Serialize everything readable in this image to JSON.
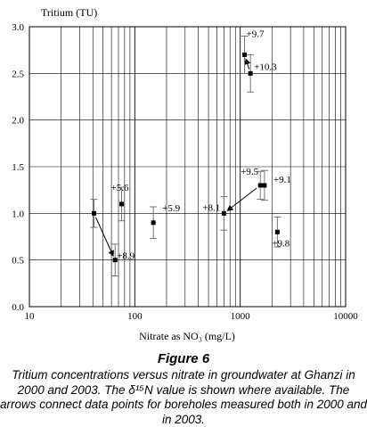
{
  "chart_data": {
    "type": "scatter",
    "xlabel": "Nitrate as NO₃ (mg/L)",
    "ylabel": "Tritium (TU)",
    "xscale": "log",
    "xlim": [
      10,
      10000
    ],
    "ylim": [
      0.0,
      3.0
    ],
    "grid": true,
    "x_ticks": [
      "10",
      "100",
      "1000",
      "10000"
    ],
    "y_ticks": [
      "0.0",
      "0.5",
      "1.0",
      "1.5",
      "2.0",
      "2.5",
      "3.0"
    ],
    "points": [
      {
        "x": 41,
        "y": 1.0,
        "err": 0.15,
        "label": ""
      },
      {
        "x": 65,
        "y": 0.5,
        "err": 0.17,
        "label": "+8.9"
      },
      {
        "x": 75,
        "y": 1.1,
        "err": 0.18,
        "label": "+5.6"
      },
      {
        "x": 150,
        "y": 0.9,
        "err": 0.17,
        "label": "+5.9"
      },
      {
        "x": 700,
        "y": 1.0,
        "err": 0.18,
        "label": "+8.1"
      },
      {
        "x": 1550,
        "y": 1.3,
        "err": 0.15,
        "label": "+9.5"
      },
      {
        "x": 1700,
        "y": 1.3,
        "err": 0.16,
        "label": "+9.1"
      },
      {
        "x": 2250,
        "y": 0.8,
        "err": 0.16,
        "label": "+9.8"
      },
      {
        "x": 1100,
        "y": 2.7,
        "err": 0.2,
        "label": "+9.7"
      },
      {
        "x": 1250,
        "y": 2.5,
        "err": 0.2,
        "label": "+10.3"
      }
    ],
    "arrows": [
      {
        "from": {
          "x": 41,
          "y": 1.0
        },
        "to": {
          "x": 65,
          "y": 0.5
        }
      },
      {
        "from": {
          "x": 1550,
          "y": 1.3
        },
        "to": {
          "x": 700,
          "y": 1.0
        }
      },
      {
        "from": {
          "x": 1250,
          "y": 2.5
        },
        "to": {
          "x": 1100,
          "y": 2.7
        }
      }
    ]
  },
  "caption": {
    "figure_label": "Figure 6",
    "text": "Tritium concentrations versus nitrate in groundwater at Ghanzi in 2000 and 2003. The δ¹⁵N value is shown where available. The arrows connect data points for boreholes measured both in 2000 and in 2003."
  }
}
